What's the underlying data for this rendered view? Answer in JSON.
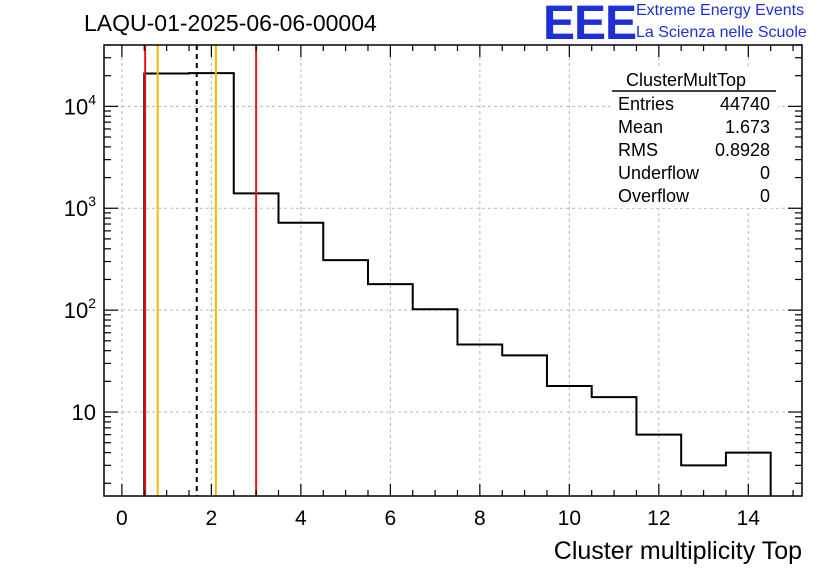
{
  "header": {
    "title": "LAQU-01-2025-06-06-00004",
    "logo_text": "EEE",
    "logo_line1": "Extreme Energy Events",
    "logo_line2": "La Scienza nelle Scuole"
  },
  "stats": {
    "name": "ClusterMultTop",
    "rows": [
      {
        "label": "Entries",
        "value": "44740"
      },
      {
        "label": "Mean",
        "value": "1.673"
      },
      {
        "label": "RMS",
        "value": "0.8928"
      },
      {
        "label": "Underflow",
        "value": "0"
      },
      {
        "label": "Overflow",
        "value": "0"
      }
    ]
  },
  "chart_data": {
    "type": "histogram",
    "title": "LAQU-01-2025-06-06-00004",
    "xlabel": "Cluster multiplicity Top",
    "ylabel": "",
    "yscale": "log",
    "grid": true,
    "xlim": [
      -0.4,
      15.2
    ],
    "ylim": [
      1.5,
      40000
    ],
    "x_ticks": [
      0,
      2,
      4,
      6,
      8,
      10,
      12,
      14
    ],
    "y_ticks": [
      {
        "value": 10,
        "base": "10",
        "exp": ""
      },
      {
        "value": 100,
        "base": "10",
        "exp": "2"
      },
      {
        "value": 1000,
        "base": "10",
        "exp": "3"
      },
      {
        "value": 10000,
        "base": "10",
        "exp": "4"
      }
    ],
    "bins": [
      {
        "low": 0.5,
        "high": 1.5,
        "count": 21000
      },
      {
        "low": 1.5,
        "high": 2.5,
        "count": 21200
      },
      {
        "low": 2.5,
        "high": 3.5,
        "count": 1400
      },
      {
        "low": 3.5,
        "high": 4.5,
        "count": 720
      },
      {
        "low": 4.5,
        "high": 5.5,
        "count": 310
      },
      {
        "low": 5.5,
        "high": 6.5,
        "count": 180
      },
      {
        "low": 6.5,
        "high": 7.5,
        "count": 102
      },
      {
        "low": 7.5,
        "high": 8.5,
        "count": 46
      },
      {
        "low": 8.5,
        "high": 9.5,
        "count": 36
      },
      {
        "low": 9.5,
        "high": 10.5,
        "count": 18
      },
      {
        "low": 10.5,
        "high": 11.5,
        "count": 14
      },
      {
        "low": 11.5,
        "high": 12.5,
        "count": 6
      },
      {
        "low": 12.5,
        "high": 13.5,
        "count": 3
      },
      {
        "low": 13.5,
        "high": 14.5,
        "count": 4
      }
    ],
    "vertical_lines": [
      {
        "name": "lower-red-line",
        "x": 0.52,
        "color": "#e8141b",
        "style": "solid"
      },
      {
        "name": "lower-orange-line",
        "x": 0.8,
        "color": "#f5b800",
        "style": "solid"
      },
      {
        "name": "mean-dashed-line",
        "x": 1.673,
        "color": "#000000",
        "style": "dashed"
      },
      {
        "name": "upper-orange-line",
        "x": 2.1,
        "color": "#f5b800",
        "style": "solid"
      },
      {
        "name": "upper-red-line",
        "x": 3.0,
        "color": "#e8141b",
        "style": "solid"
      }
    ]
  }
}
